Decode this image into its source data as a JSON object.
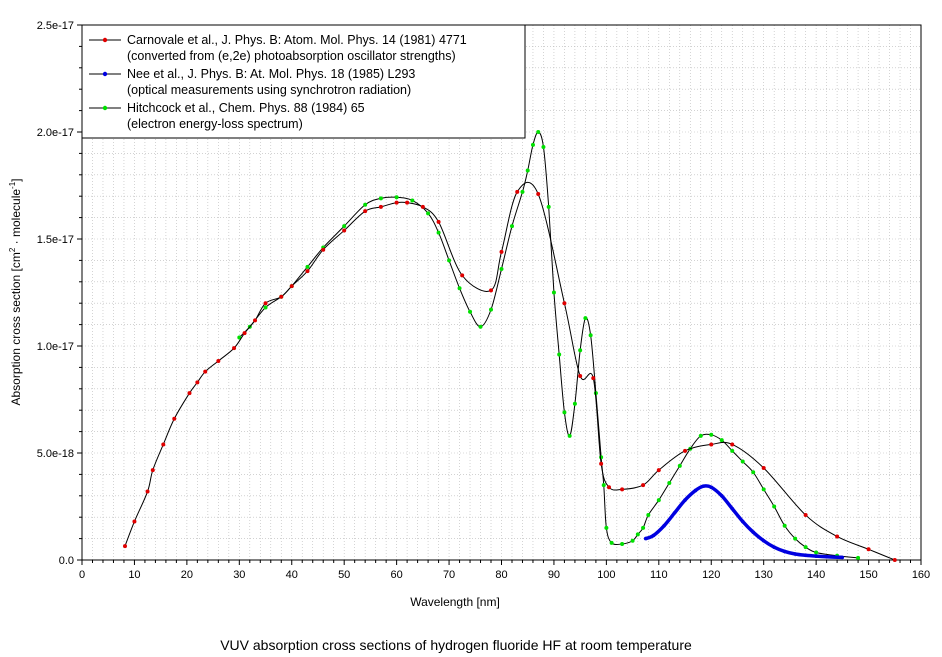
{
  "chart_data": {
    "type": "line",
    "caption": "VUV absorption cross sections of hydrogen fluoride HF at room temperature",
    "xlabel": "Wavelength [nm]",
    "ylabel_main": "Absorption cross section [cm",
    "ylabel_sup1": "2",
    "ylabel_mid": " · molecule",
    "ylabel_sup2": "-1",
    "ylabel_end": "]",
    "xlim": [
      0,
      160
    ],
    "ylim": [
      0,
      2.5e-17
    ],
    "x_ticks": [
      0,
      10,
      20,
      30,
      40,
      50,
      60,
      70,
      80,
      90,
      100,
      110,
      120,
      130,
      140,
      150,
      160
    ],
    "y_ticks": [
      {
        "value": 0,
        "label": "0.0"
      },
      {
        "value": 5e-18,
        "label": "5.0e-18"
      },
      {
        "value": 1e-17,
        "label": "1.0e-17"
      },
      {
        "value": 1.5e-17,
        "label": "1.5e-17"
      },
      {
        "value": 2e-17,
        "label": "2.0e-17"
      },
      {
        "value": 2.5e-17,
        "label": "2.5e-17"
      }
    ],
    "grid": true,
    "legend_position": "top-left",
    "series": [
      {
        "name": "Carnovale et al., J. Phys. B: Atom. Mol. Phys. 14 (1981) 4771",
        "note": "(converted from (e,2e) photoabsorption oscillator strengths)",
        "color": "#e00000",
        "x": [
          8.2,
          10,
          12.5,
          13.5,
          15.5,
          17.6,
          20.5,
          22,
          23.5,
          26,
          29,
          31,
          33,
          35,
          38,
          40,
          43,
          46,
          50,
          54,
          57,
          60,
          62,
          65,
          68,
          72.5,
          78,
          80,
          83,
          87,
          92,
          95,
          97.5,
          99,
          100.5,
          103,
          107,
          110,
          115,
          120,
          124,
          130,
          138,
          144,
          150,
          155
        ],
        "y": [
          6.5e-19,
          1.8e-18,
          3.2e-18,
          4.2e-18,
          5.4e-18,
          6.6e-18,
          7.8e-18,
          8.3e-18,
          8.8e-18,
          9.3e-18,
          9.9e-18,
          1.06e-17,
          1.12e-17,
          1.2e-17,
          1.23e-17,
          1.28e-17,
          1.35e-17,
          1.45e-17,
          1.54e-17,
          1.63e-17,
          1.65e-17,
          1.67e-17,
          1.67e-17,
          1.65e-17,
          1.58e-17,
          1.33e-17,
          1.26e-17,
          1.44e-17,
          1.72e-17,
          1.71e-17,
          1.2e-17,
          8.6e-18,
          8.5e-18,
          4.5e-18,
          3.4e-18,
          3.3e-18,
          3.5e-18,
          4.2e-18,
          5.1e-18,
          5.4e-18,
          5.4e-18,
          4.3e-18,
          2.1e-18,
          1.1e-18,
          5e-19,
          0.0
        ]
      },
      {
        "name": "Nee et al., J. Phys. B: At. Mol. Phys. 18 (1985) L293",
        "note": "(optical measurements using synchrotron radiation)",
        "color": "#0000e0",
        "x": [
          107.5,
          109,
          111,
          113,
          115,
          117,
          118.5,
          120,
          122,
          124,
          126,
          128,
          130,
          132,
          134,
          136,
          138,
          140,
          142,
          145
        ],
        "y": [
          1e-18,
          1.15e-18,
          1.6e-18,
          2.2e-18,
          2.8e-18,
          3.25e-18,
          3.45e-18,
          3.4e-18,
          3e-18,
          2.4e-18,
          1.8e-18,
          1.3e-18,
          9e-19,
          6e-19,
          4e-19,
          2.8e-19,
          2.2e-19,
          1.8e-19,
          1.5e-19,
          1.2e-19
        ]
      },
      {
        "name": "Hitchcock et al., Chem. Phys. 88 (1984) 65",
        "note": "(electron energy-loss spectrum)",
        "color": "#00e000",
        "x": [
          30,
          32,
          35,
          38,
          40,
          43,
          46,
          50,
          54,
          57,
          60,
          63,
          66,
          68,
          70,
          72,
          74,
          76,
          78,
          80,
          82,
          84,
          85,
          86,
          87,
          88,
          89,
          90,
          91,
          92,
          93,
          94,
          95,
          96,
          97,
          98,
          99,
          99.5,
          100,
          101,
          103,
          105,
          106,
          107,
          108,
          110,
          112,
          114,
          116,
          118,
          120,
          122,
          124,
          126,
          128,
          130,
          132,
          134,
          136,
          138,
          140,
          144,
          148
        ],
        "y": [
          1.04e-17,
          1.09e-17,
          1.18e-17,
          1.23e-17,
          1.28e-17,
          1.37e-17,
          1.46e-17,
          1.56e-17,
          1.66e-17,
          1.69e-17,
          1.695e-17,
          1.68e-17,
          1.62e-17,
          1.53e-17,
          1.4e-17,
          1.27e-17,
          1.16e-17,
          1.09e-17,
          1.17e-17,
          1.36e-17,
          1.56e-17,
          1.72e-17,
          1.82e-17,
          1.94e-17,
          2e-17,
          1.93e-17,
          1.65e-17,
          1.25e-17,
          9.6e-18,
          6.9e-18,
          5.8e-18,
          7.3e-18,
          9.8e-18,
          1.13e-17,
          1.05e-17,
          7.8e-18,
          4.8e-18,
          3.5e-18,
          1.5e-18,
          8e-19,
          7.5e-19,
          9e-19,
          1.2e-18,
          1.5e-18,
          2.1e-18,
          2.8e-18,
          3.6e-18,
          4.4e-18,
          5.2e-18,
          5.8e-18,
          5.85e-18,
          5.6e-18,
          5.1e-18,
          4.6e-18,
          4.1e-18,
          3.3e-18,
          2.5e-18,
          1.6e-18,
          1e-18,
          6e-19,
          3.5e-19,
          2e-19,
          1e-19
        ]
      }
    ]
  }
}
